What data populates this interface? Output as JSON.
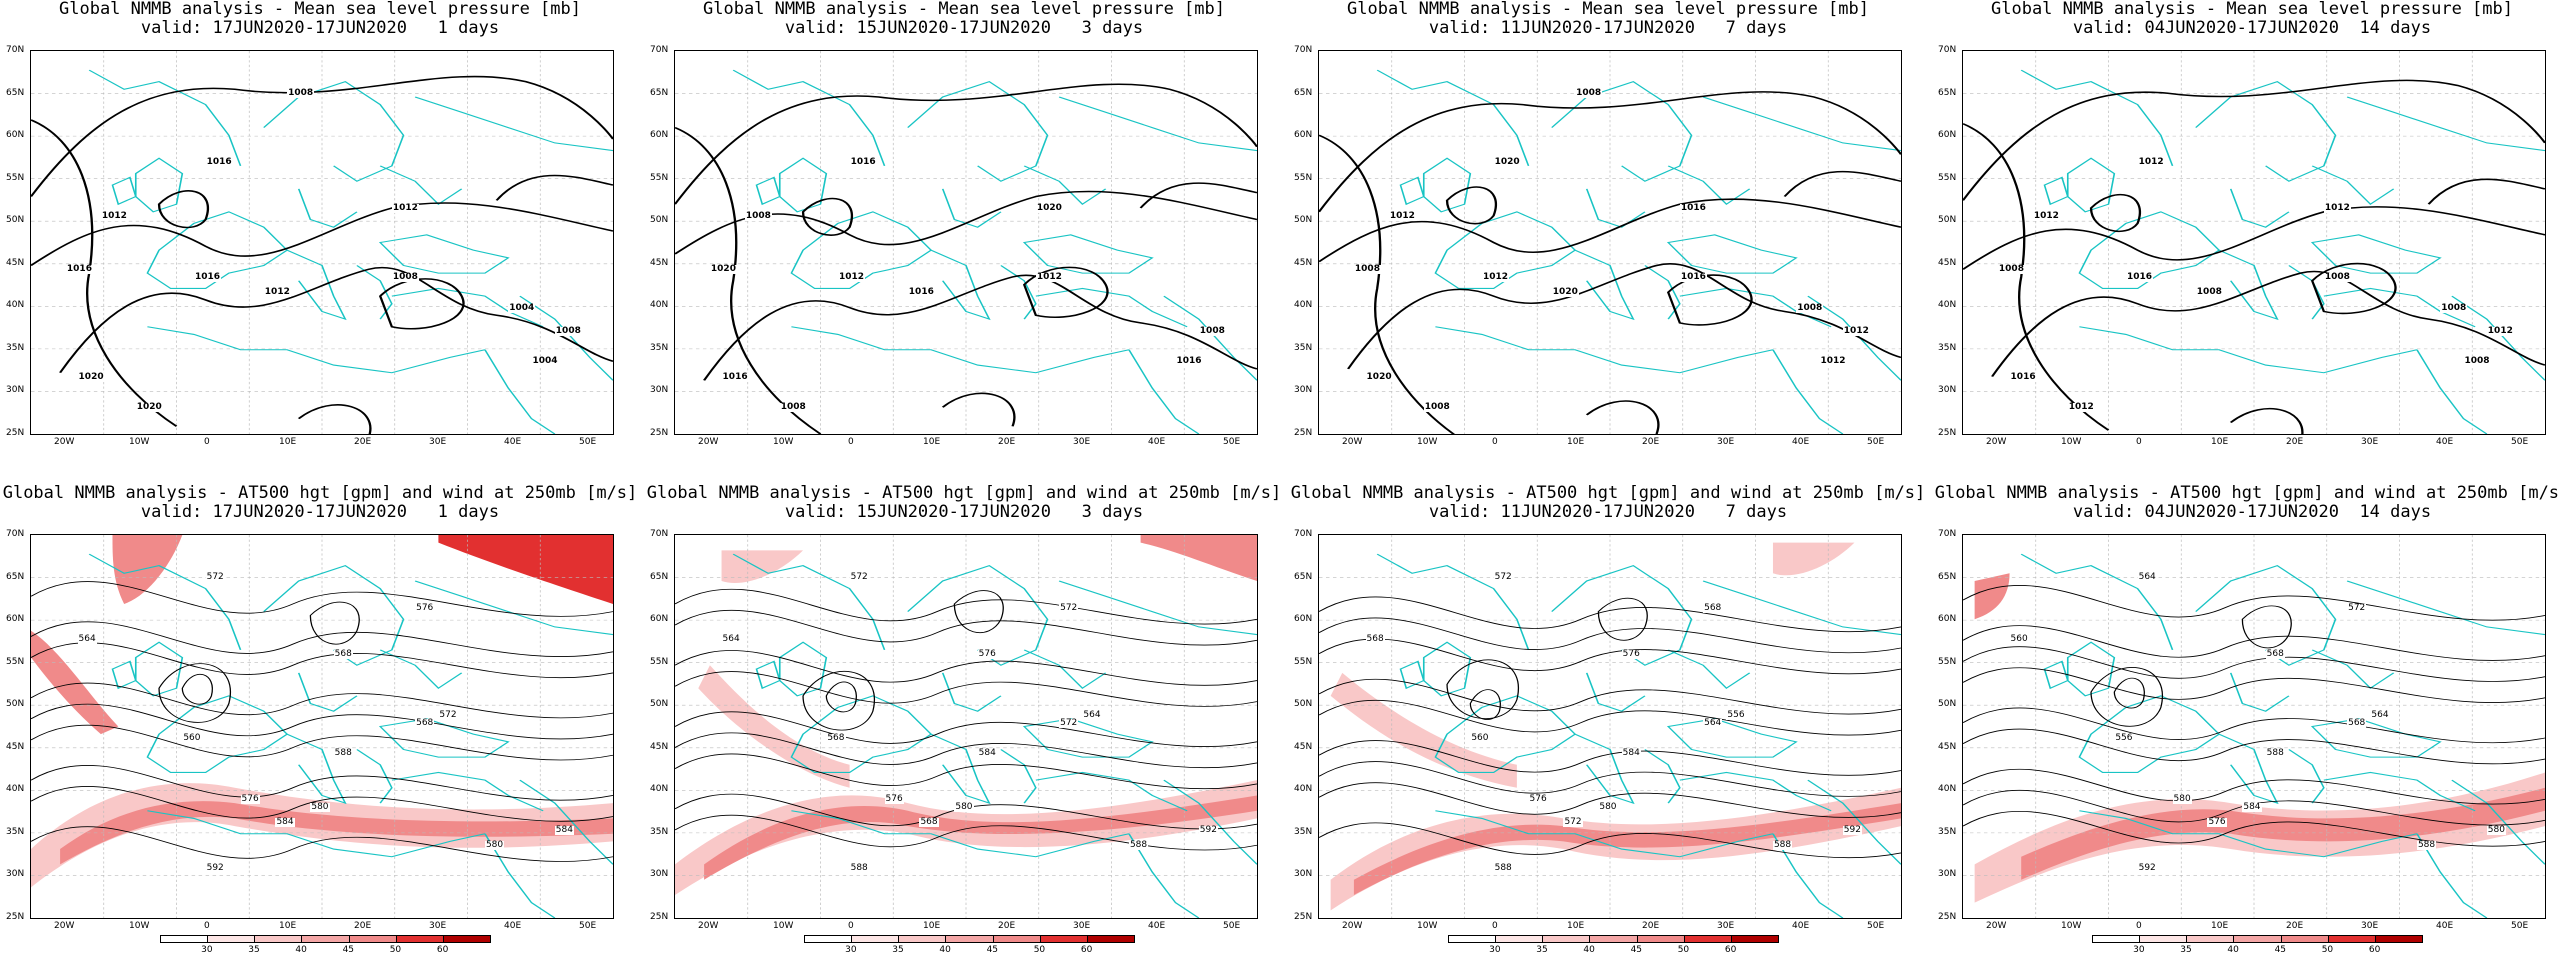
{
  "panels": [
    {
      "title": "Global NMMB analysis - Mean sea level pressure [mb]",
      "valid": "valid: 17JUN2020-17JUN2020   1 days",
      "kind": "mslp",
      "labels": [
        "1020",
        "1016",
        "1012",
        "1008",
        "1004",
        "1016",
        "1020",
        "1012",
        "1016",
        "1012",
        "1008",
        "1004",
        "1008"
      ]
    },
    {
      "title": "Global NMMB analysis - Mean sea level pressure [mb]",
      "valid": "valid: 15JUN2020-17JUN2020   3 days",
      "kind": "mslp",
      "labels": [
        "1016",
        "1016",
        "1020",
        "1012",
        "1016",
        "1012",
        "1008",
        "1008",
        "1020",
        "1016",
        "1008"
      ]
    },
    {
      "title": "Global NMMB analysis - Mean sea level pressure [mb]",
      "valid": "valid: 11JUN2020-17JUN2020   7 days",
      "kind": "mslp",
      "labels": [
        "1020",
        "1020",
        "1016",
        "1016",
        "1012",
        "1012",
        "1008",
        "1012",
        "1008",
        "1020",
        "1012",
        "1008",
        "1008"
      ]
    },
    {
      "title": "Global NMMB analysis - Mean sea level pressure [mb]",
      "valid": "valid: 04JUN2020-17JUN2020  14 days",
      "kind": "mslp",
      "labels": [
        "1016",
        "1012",
        "1012",
        "1008",
        "1008",
        "1016",
        "1012",
        "1012",
        "1008",
        "1008",
        "1012",
        "1008"
      ]
    },
    {
      "title": "Global NMMB analysis - AT500 hgt [gpm] and wind at 250mb [m/s]",
      "valid": "valid: 17JUN2020-17JUN2020   1 days",
      "kind": "z500",
      "labels": [
        "564",
        "572",
        "568",
        "576",
        "560",
        "572",
        "568",
        "584",
        "576",
        "580",
        "588",
        "592",
        "584",
        "580"
      ]
    },
    {
      "title": "Global NMMB analysis - AT500 hgt [gpm] and wind at 250mb [m/s]",
      "valid": "valid: 15JUN2020-17JUN2020   3 days",
      "kind": "z500",
      "labels": [
        "564",
        "572",
        "576",
        "572",
        "568",
        "564",
        "572",
        "568",
        "576",
        "580",
        "584",
        "588",
        "592",
        "588"
      ]
    },
    {
      "title": "Global NMMB analysis - AT500 hgt [gpm] and wind at 250mb [m/s]",
      "valid": "valid: 11JUN2020-17JUN2020   7 days",
      "kind": "z500",
      "labels": [
        "568",
        "572",
        "576",
        "568",
        "560",
        "556",
        "564",
        "572",
        "576",
        "580",
        "584",
        "588",
        "592",
        "588"
      ]
    },
    {
      "title": "Global NMMB analysis - AT500 hgt [gpm] and wind at 250mb [m/s]",
      "valid": "valid: 04JUN2020-17JUN2020  14 days",
      "kind": "z500",
      "labels": [
        "560",
        "564",
        "568",
        "572",
        "556",
        "564",
        "568",
        "576",
        "580",
        "584",
        "588",
        "592",
        "580",
        "588"
      ]
    }
  ],
  "lat_labels": [
    "70N",
    "65N",
    "60N",
    "55N",
    "50N",
    "45N",
    "40N",
    "35N",
    "30N",
    "25N"
  ],
  "lon_labels": [
    "20W",
    "10W",
    "0",
    "10E",
    "20E",
    "30E",
    "40E",
    "50E"
  ],
  "colorbar_labels": [
    "30",
    "35",
    "40",
    "45",
    "50",
    "60"
  ],
  "colors": {
    "coast": "#19c4c4",
    "contour": "#000000",
    "wind_light": "#f9c8c8",
    "wind_mid": "#f08a8a",
    "wind_dark": "#e23030",
    "wind_max": "#b00000",
    "grid": "#bbbbbb"
  }
}
